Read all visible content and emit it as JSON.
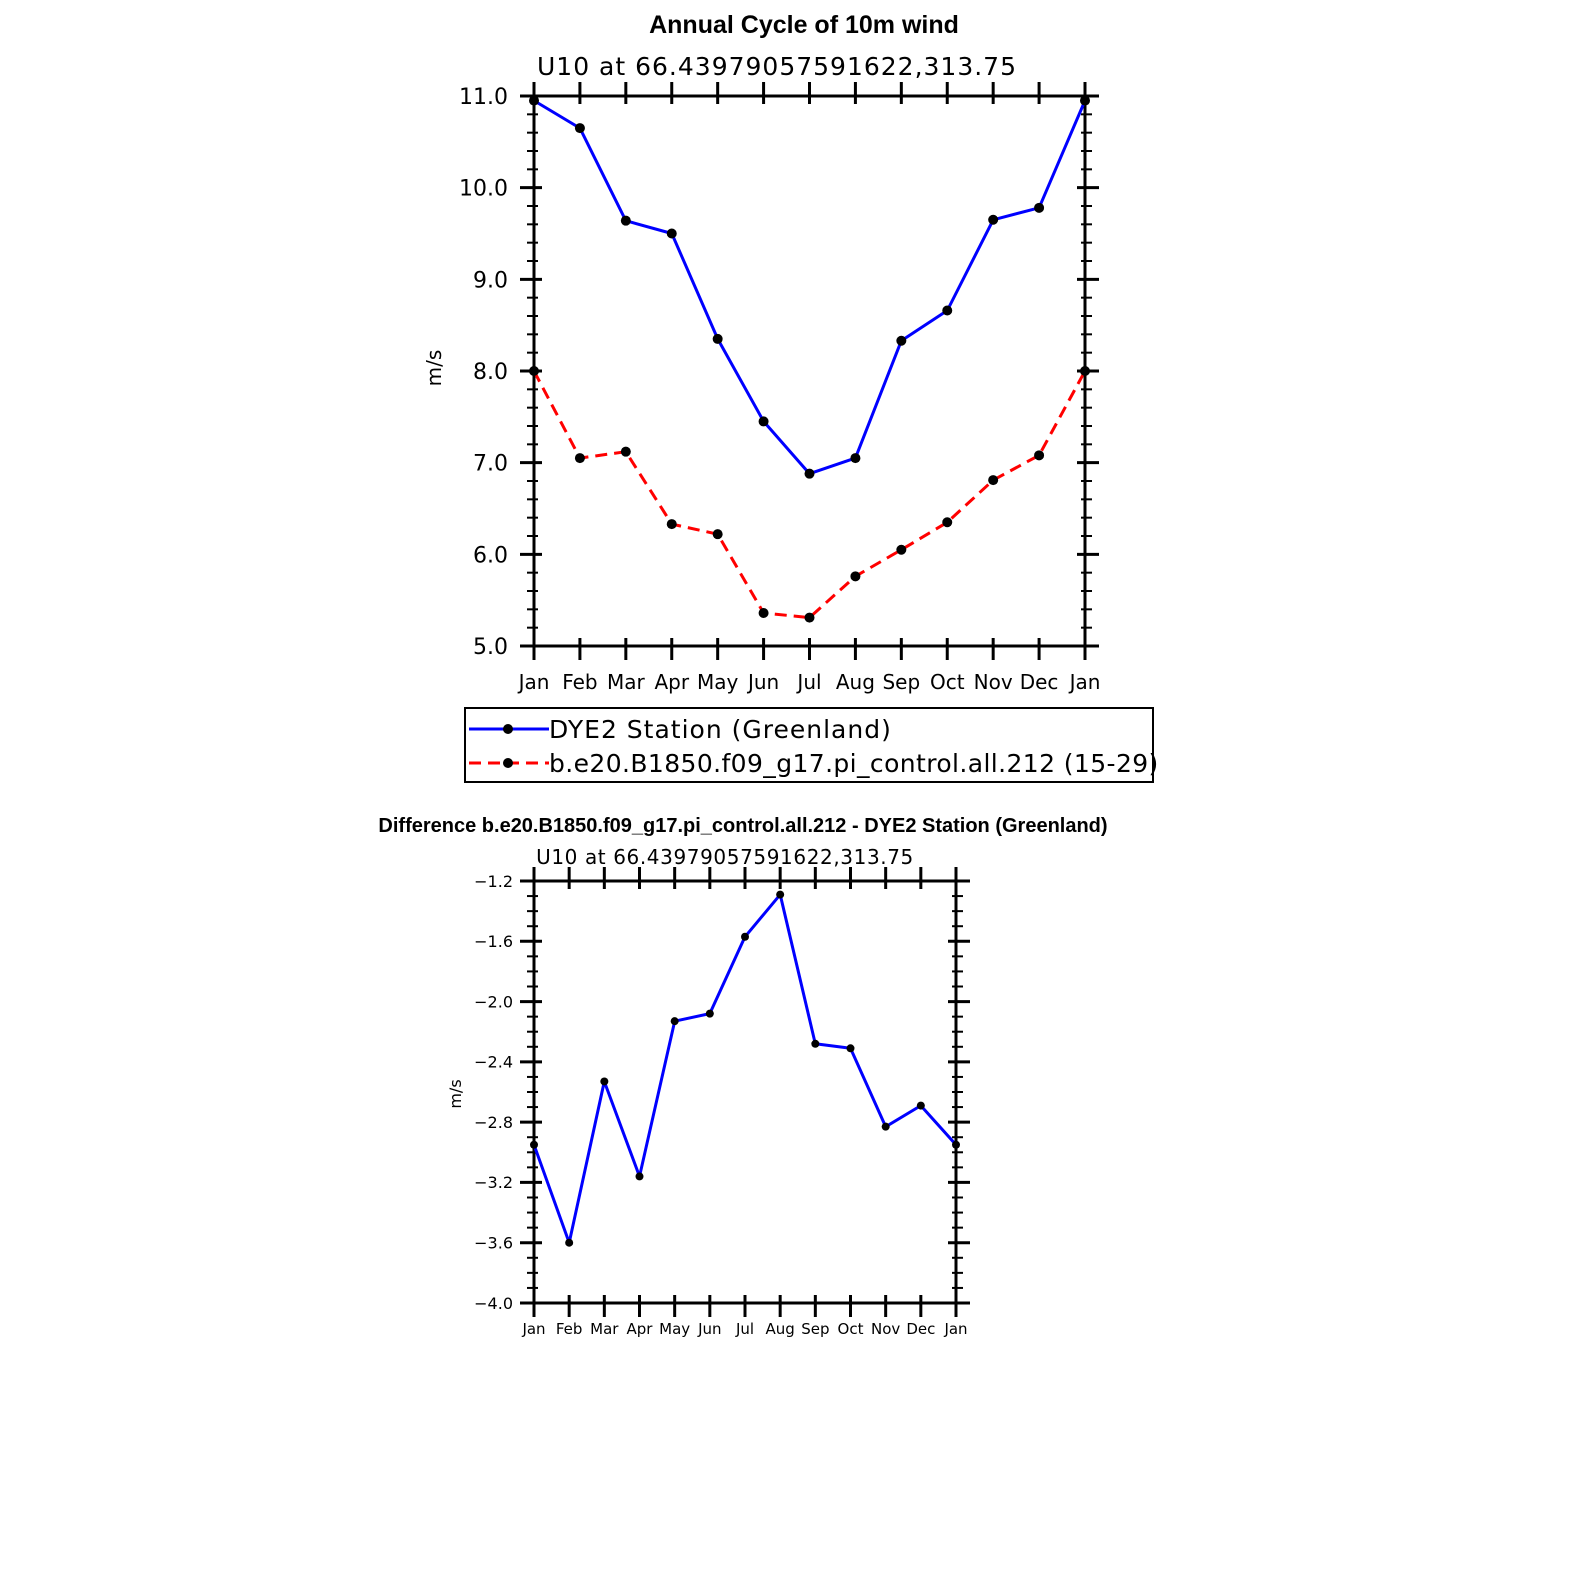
{
  "chart_data": [
    {
      "type": "line",
      "title": "Annual Cycle of 10m wind",
      "subtitle": "U10 at 66.43979057591622,313.75",
      "xlabel": "",
      "ylabel": "m/s",
      "categories": [
        "Jan",
        "Feb",
        "Mar",
        "Apr",
        "May",
        "Jun",
        "Jul",
        "Aug",
        "Sep",
        "Oct",
        "Nov",
        "Dec",
        "Jan"
      ],
      "ylim": [
        5.0,
        11.0
      ],
      "yticks": [
        "5.0",
        "6.0",
        "7.0",
        "8.0",
        "9.0",
        "10.0",
        "11.0"
      ],
      "legend_position": "bottom",
      "series": [
        {
          "name": "DYE2 Station (Greenland)",
          "color": "#0000ff",
          "style": "solid",
          "values": [
            10.95,
            10.65,
            9.64,
            9.5,
            8.35,
            7.45,
            6.88,
            7.05,
            8.33,
            8.66,
            9.65,
            9.78,
            10.95
          ]
        },
        {
          "name": "b.e20.B1850.f09_g17.pi_control.all.212 (15-29)",
          "color": "#ff0000",
          "style": "dashed",
          "values": [
            8.0,
            7.05,
            7.12,
            6.33,
            6.22,
            5.36,
            5.31,
            5.76,
            6.05,
            6.35,
            6.81,
            7.08,
            8.0
          ]
        }
      ]
    },
    {
      "type": "line",
      "title": "Difference b.e20.B1850.f09_g17.pi_control.all.212 - DYE2 Station (Greenland)",
      "subtitle": "U10 at 66.43979057591622,313.75",
      "xlabel": "",
      "ylabel": "m/s",
      "categories": [
        "Jan",
        "Feb",
        "Mar",
        "Apr",
        "May",
        "Jun",
        "Jul",
        "Aug",
        "Sep",
        "Oct",
        "Nov",
        "Dec",
        "Jan"
      ],
      "ylim": [
        -4.0,
        -1.2
      ],
      "yticks": [
        "-4.0",
        "-3.6",
        "-3.2",
        "-2.8",
        "-2.4",
        "-2.0",
        "-1.6",
        "-1.2"
      ],
      "series": [
        {
          "color": "#0000ff",
          "style": "solid",
          "values": [
            -2.95,
            -3.6,
            -2.53,
            -3.16,
            -2.13,
            -2.08,
            -1.57,
            -1.29,
            -2.28,
            -2.31,
            -2.83,
            -2.69,
            -2.95
          ]
        }
      ]
    }
  ]
}
